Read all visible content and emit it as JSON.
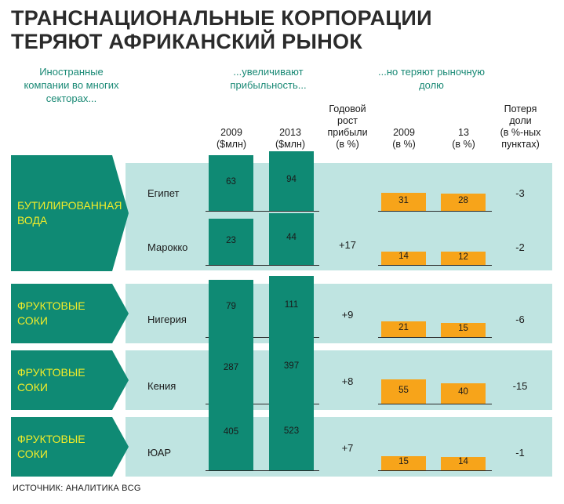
{
  "title": {
    "line1": "ТРАНСНАЦИОНАЛЬНЫЕ КОРПОРАЦИИ",
    "line2": "ТЕРЯЮТ АФРИКАНСКИЙ РЫНОК"
  },
  "subtitles": {
    "left": [
      "Иностранные",
      "компании во многих",
      "секторах..."
    ],
    "middle": [
      "...увеличивают",
      "прибыльность..."
    ],
    "right": [
      "...но теряют рыночную",
      "долю"
    ]
  },
  "columns": {
    "profit_2009": [
      "2009",
      "($млн)"
    ],
    "profit_2013": [
      "2013",
      "($млн)"
    ],
    "growth": [
      "Годовой",
      "рост",
      "прибыли",
      "(в %)"
    ],
    "share_2009": [
      "2009",
      "(в %)"
    ],
    "share_13": [
      "13",
      "(в %)"
    ],
    "loss": [
      "Потеря",
      "доли",
      "(в %-ных",
      "пунктах)"
    ]
  },
  "source": "ИСТОЧНИК: АНАЛИТИКА BCG",
  "colors": {
    "teal": "#0f8a74",
    "band": "#bfe4e1",
    "orange": "#f7a41a",
    "label_text": "#f2ec29",
    "subtitle_text": "#1b8a76"
  },
  "chart_data": {
    "type": "bar",
    "groups": [
      {
        "sector": [
          "БУТИЛИРОВАННАЯ",
          "ВОДА"
        ],
        "countries": [
          "Египет",
          "Марокко"
        ],
        "growth": "+17"
      },
      {
        "sector": [
          "ФРУКТОВЫЕ СОКИ"
        ],
        "countries": [
          "Нигерия"
        ],
        "growth": "+9"
      },
      {
        "sector": [
          "ФРУКТОВЫЕ СОКИ"
        ],
        "countries": [
          "Кения"
        ],
        "growth": "+8"
      },
      {
        "sector": [
          "ФРУКТОВЫЕ СОКИ"
        ],
        "countries": [
          "ЮАР"
        ],
        "growth": "+7"
      }
    ],
    "rows": [
      {
        "country": "Египет",
        "profit_2009": 63,
        "profit_2013": 94,
        "share_2009": 31,
        "share_13": 28,
        "loss": "-3"
      },
      {
        "country": "Марокко",
        "profit_2009": 23,
        "profit_2013": 44,
        "share_2009": 14,
        "share_13": 12,
        "loss": "-2"
      },
      {
        "country": "Нигерия",
        "profit_2009": 79,
        "profit_2013": 111,
        "share_2009": 21,
        "share_13": 15,
        "loss": "-6"
      },
      {
        "country": "Кения",
        "profit_2009": 287,
        "profit_2013": 397,
        "share_2009": 55,
        "share_13": 40,
        "loss": "-15"
      },
      {
        "country": "ЮАР",
        "profit_2009": 405,
        "profit_2013": 523,
        "share_2009": 15,
        "share_13": 14,
        "loss": "-1"
      }
    ]
  }
}
